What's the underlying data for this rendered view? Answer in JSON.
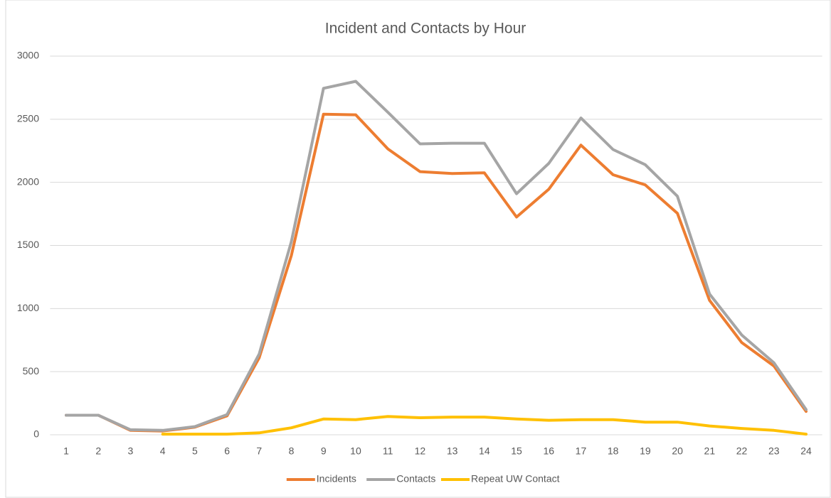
{
  "chart_data": {
    "type": "line",
    "title": "Incident and Contacts by Hour",
    "categories": [
      "1",
      "2",
      "3",
      "4",
      "5",
      "6",
      "7",
      "8",
      "9",
      "10",
      "11",
      "12",
      "13",
      "14",
      "15",
      "16",
      "17",
      "18",
      "19",
      "20",
      "21",
      "22",
      "23",
      "24"
    ],
    "series": [
      {
        "name": "Incidents",
        "color": "#ED7D31",
        "values": [
          155,
          155,
          35,
          30,
          60,
          150,
          610,
          1420,
          2540,
          2535,
          2265,
          2085,
          2070,
          2075,
          1725,
          1945,
          2295,
          2060,
          1980,
          1755,
          1065,
          730,
          545,
          185
        ]
      },
      {
        "name": "Contacts",
        "color": "#A5A5A5",
        "values": [
          155,
          155,
          40,
          35,
          65,
          160,
          640,
          1530,
          2745,
          2800,
          2555,
          2305,
          2310,
          2310,
          1910,
          2150,
          2510,
          2260,
          2140,
          1890,
          1115,
          790,
          570,
          200
        ]
      },
      {
        "name": "Repeat UW Contact",
        "color": "#FFC000",
        "values": [
          null,
          null,
          null,
          5,
          5,
          5,
          15,
          55,
          125,
          120,
          145,
          135,
          140,
          140,
          125,
          115,
          120,
          120,
          100,
          100,
          70,
          50,
          35,
          5
        ]
      }
    ],
    "ylim": [
      0,
      3000
    ],
    "yticks": [
      0,
      500,
      1000,
      1500,
      2000,
      2500,
      3000
    ],
    "grid": true,
    "legend": "bottom"
  }
}
